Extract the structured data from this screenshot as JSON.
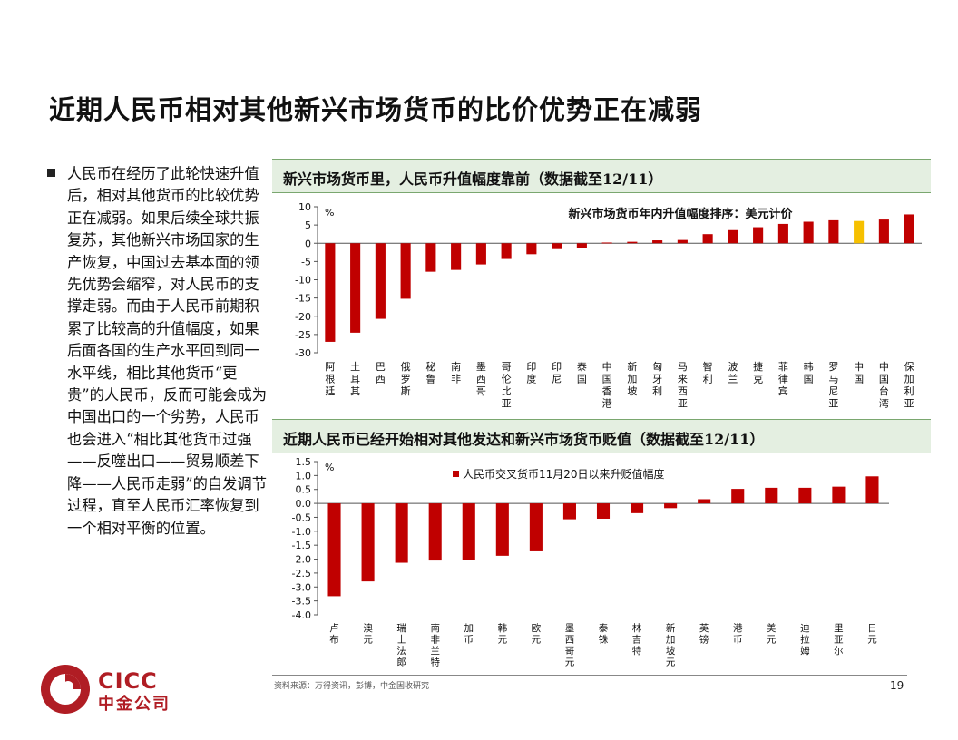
{
  "slide": {
    "title": "近期人民币相对其他新兴市场货币的比价优势正在减弱",
    "body_text": "人民币在经历了此轮快速升值后，相对其他货币的比较优势正在减弱。如果后续全球共振复苏，其他新兴市场国家的生产恢复，中国过去基本面的领先优势会缩窄，对人民币的支撑走弱。而由于人民币前期积累了比较高的升值幅度，如果后面各国的生产水平回到同一水平线，相比其他货币“更贵”的人民币，反而可能会成为中国出口的一个劣势，人民币也会进入“相比其他货币过强——反噬出口——贸易顺差下降——人民币走弱”的自发调节过程，直至人民币汇率恢复到一个相对平衡的位置。",
    "source": "资料来源：万得资讯，彭博，中金固收研究",
    "page_number": "19",
    "logo": {
      "text_en": "CICC",
      "text_cn": "中金公司"
    }
  },
  "colors": {
    "bar": "#c00000",
    "highlight": "#f6c000",
    "header_bg": "#e4efe1",
    "brand": "#b01d24"
  },
  "chart_data": [
    {
      "type": "bar",
      "panel_title": "新兴市场货币里，人民币升值幅度靠前（数据截至12/11）",
      "title": "新兴市场货币年内升值幅度排序：美元计价",
      "ylabel": "%",
      "ylim": [
        -30,
        10
      ],
      "yticks": [
        10,
        5,
        0,
        -5,
        -10,
        -15,
        -20,
        -25,
        -30
      ],
      "highlight_category": "中国",
      "categories": [
        "阿根廷",
        "土耳其",
        "巴西",
        "俄罗斯",
        "秘鲁",
        "南非",
        "墨西哥",
        "哥伦比亚",
        "印度",
        "印尼",
        "泰国",
        "中国香港",
        "新加坡",
        "匈牙利",
        "马来西亚",
        "智利",
        "波兰",
        "捷克",
        "菲律宾",
        "韩国",
        "罗马尼亚",
        "中国",
        "中国台湾",
        "保加利亚"
      ],
      "values": [
        -27.0,
        -24.5,
        -20.7,
        -15.2,
        -7.8,
        -7.3,
        -5.8,
        -4.3,
        -3.0,
        -1.6,
        -1.2,
        0.2,
        0.4,
        0.8,
        0.9,
        2.5,
        3.6,
        4.4,
        5.3,
        5.9,
        6.3,
        6.1,
        6.5,
        7.9
      ]
    },
    {
      "type": "bar",
      "panel_title": "近期人民币已经开始相对其他发达和新兴市场货币贬值（数据截至12/11）",
      "legend": "人民币交叉货币11月20日以来升贬值幅度",
      "legend_position": "top",
      "ylabel": "%",
      "ylim": [
        -4.0,
        1.5
      ],
      "yticks": [
        "1.5",
        "1.0",
        "0.5",
        "0.0",
        "-0.5",
        "-1.0",
        "-1.5",
        "-2.0",
        "-2.5",
        "-3.0",
        "-3.5",
        "-4.0"
      ],
      "categories": [
        "卢布",
        "澳元",
        "瑞士法郎",
        "南非兰特",
        "加币",
        "韩元",
        "欧元",
        "墨西哥元",
        "泰铢",
        "林吉特",
        "新加坡元",
        "英镑",
        "港币",
        "美元",
        "迪拉姆",
        "里亚尔",
        "日元"
      ],
      "values": [
        -3.33,
        -2.8,
        -2.13,
        -2.05,
        -2.02,
        -1.88,
        -1.72,
        -0.57,
        -0.55,
        -0.35,
        -0.17,
        0.15,
        0.52,
        0.56,
        0.56,
        0.6,
        0.97
      ]
    }
  ]
}
